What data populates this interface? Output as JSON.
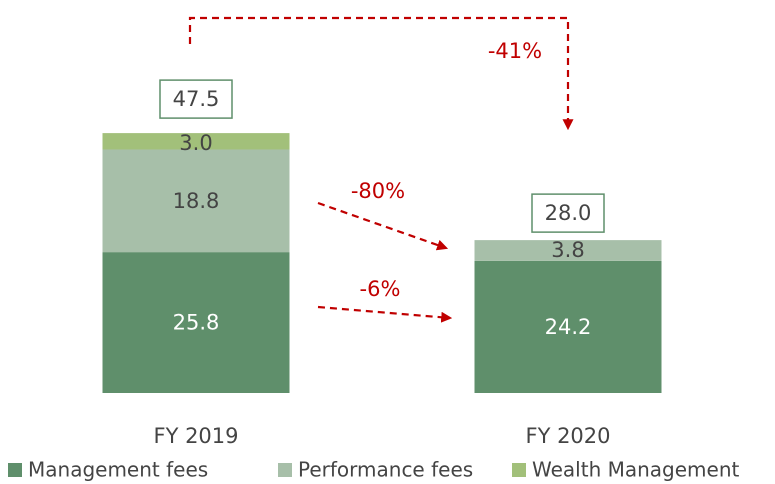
{
  "chart_data": {
    "type": "stacked_bar",
    "categories": [
      "FY 2019",
      "FY 2020"
    ],
    "series": [
      {
        "name": "Management fees",
        "color": "#5f8f6b",
        "values": [
          25.8,
          24.2
        ]
      },
      {
        "name": "Performance fees",
        "color": "#a7bfa9",
        "values": [
          18.8,
          3.8
        ]
      },
      {
        "name": "Wealth Management",
        "color": "#a2c07a",
        "values": [
          3.0,
          null
        ],
        "value_labels": [
          "3.0",
          null
        ]
      }
    ],
    "totals": {
      "values": [
        47.5,
        28.0
      ],
      "value_labels": [
        "47.5",
        "28.0"
      ]
    },
    "annotations": [
      "-41%",
      "-80%",
      "-6%"
    ]
  }
}
